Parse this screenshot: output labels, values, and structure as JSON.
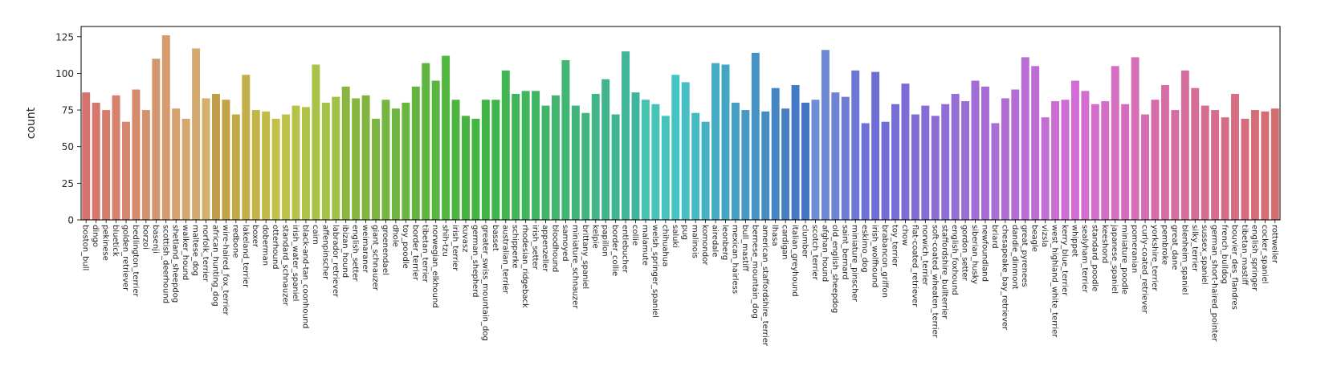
{
  "chart_data": {
    "type": "bar",
    "xlabel": "",
    "ylabel": "count",
    "ylim": [
      0,
      132
    ],
    "yticks": [
      0,
      25,
      50,
      75,
      100,
      125
    ],
    "grid": false,
    "categories": [
      "boston_bull",
      "dingo",
      "pekinese",
      "bluetick",
      "golden_retriever",
      "bedlington_terrier",
      "borzoi",
      "basenji",
      "scottish_deerhound",
      "shetland_sheepdog",
      "walker_hound",
      "maltese_dog",
      "norfolk_terrier",
      "african_hunting_dog",
      "wire-haired_fox_terrier",
      "redbone",
      "lakeland_terrier",
      "boxer",
      "doberman",
      "otterhound",
      "standard_schnauzer",
      "irish_water_spaniel",
      "black-and-tan_coonhound",
      "cairn",
      "affenpinscher",
      "labrador_retriever",
      "ibizan_hound",
      "english_setter",
      "weimaraner",
      "giant_schnauzer",
      "groenendael",
      "dhole",
      "toy_poodle",
      "border_terrier",
      "tibetan_terrier",
      "norwegian_elkhound",
      "shih-tzu",
      "irish_terrier",
      "kuvasz",
      "german_shepherd",
      "greater_swiss_mountain_dog",
      "basset",
      "australian_terrier",
      "schipperke",
      "rhodesian_ridgeback",
      "irish_setter",
      "appenzeller",
      "bloodhound",
      "samoyed",
      "miniature_schnauzer",
      "brittany_spaniel",
      "kelpie",
      "papillon",
      "border_collie",
      "entlebucher",
      "collie",
      "malamute",
      "welsh_springer_spaniel",
      "chihuahua",
      "saluki",
      "pug",
      "malinois",
      "komondor",
      "airedale",
      "leonberg",
      "mexican_hairless",
      "bull_mastiff",
      "bernese_mountain_dog",
      "american_staffordshire_terrier",
      "lhasa",
      "cardigan",
      "italian_greyhound",
      "clumber",
      "scotch_terrier",
      "afghan_hound",
      "old_english_sheepdog",
      "saint_bernard",
      "miniature_pinscher",
      "eskimo_dog",
      "irish_wolfhound",
      "brabancon_griffon",
      "toy_terrier",
      "chow",
      "flat-coated_retriever",
      "norwich_terrier",
      "soft-coated_wheaten_terrier",
      "staffordshire_bullterrier",
      "english_foxhound",
      "gordon_setter",
      "siberian_husky",
      "newfoundland",
      "briard",
      "chesapeake_bay_retriever",
      "dandie_dinmont",
      "great_pyrenees",
      "beagle",
      "vizsla",
      "west_highland_white_terrier",
      "kerry_blue_terrier",
      "whippet",
      "sealyham_terrier",
      "standard_poodle",
      "keeshond",
      "japanese_spaniel",
      "miniature_poodle",
      "pomeranian",
      "curly-coated_retriever",
      "yorkshire_terrier",
      "pembroke",
      "great_dane",
      "blenheim_spaniel",
      "silky_terrier",
      "sussex_spaniel",
      "german_short-haired_pointer",
      "french_bulldog",
      "bouvier_des_flandres",
      "tibetan_mastiff",
      "english_springer",
      "cocker_spaniel",
      "rottweiler"
    ],
    "values": [
      87,
      80,
      75,
      85,
      67,
      89,
      75,
      110,
      126,
      76,
      69,
      117,
      83,
      86,
      82,
      72,
      99,
      75,
      74,
      69,
      72,
      78,
      77,
      106,
      80,
      84,
      91,
      83,
      85,
      69,
      82,
      76,
      80,
      91,
      107,
      95,
      112,
      82,
      71,
      69,
      82,
      82,
      102,
      86,
      88,
      88,
      78,
      85,
      109,
      78,
      73,
      86,
      96,
      72,
      115,
      87,
      82,
      79,
      71,
      99,
      94,
      73,
      67,
      107,
      106,
      80,
      75,
      114,
      74,
      90,
      76,
      92,
      80,
      82,
      116,
      87,
      84,
      102,
      66,
      101,
      67,
      79,
      93,
      72,
      78,
      71,
      79,
      86,
      81,
      95,
      91,
      66,
      83,
      89,
      111,
      105,
      70,
      81,
      82,
      95,
      88,
      79,
      81,
      105,
      79,
      111,
      72,
      82,
      92,
      75,
      102,
      90,
      78,
      75,
      70,
      86,
      69,
      75,
      74,
      76
    ]
  }
}
